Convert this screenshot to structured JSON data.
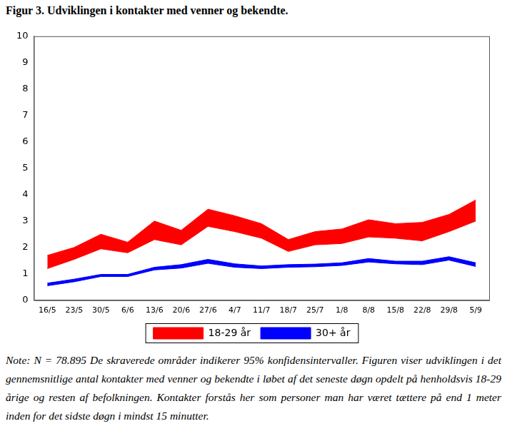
{
  "chart_data": {
    "type": "band",
    "title": "Figur 3. Udviklingen i kontakter med venner og bekendte.",
    "note": "Note: N = 78.895 De skraverede områder indikerer 95% konfidensintervaller. Figuren viser udviklingen i det gennemsnitlige antal kontakter med venner og bekendte i løbet af det seneste døgn opdelt på henholdsvis 18-29 årige og resten af befolkningen. Kontakter forstås her som personer man har været tættere på end 1 meter inden for det sidste døgn i mindst 15 minutter.",
    "categories": [
      "16/5",
      "23/5",
      "30/5",
      "6/6",
      "13/6",
      "20/6",
      "27/6",
      "4/7",
      "11/7",
      "18/7",
      "25/7",
      "1/8",
      "8/8",
      "15/8",
      "22/8",
      "29/8",
      "5/9"
    ],
    "series": [
      {
        "name": "18-29 år",
        "color": "#ff0000",
        "lower": [
          1.2,
          1.55,
          1.95,
          1.8,
          2.3,
          2.1,
          2.8,
          2.6,
          2.35,
          1.85,
          2.1,
          2.15,
          2.4,
          2.35,
          2.25,
          2.6,
          3.0
        ],
        "upper": [
          1.7,
          2.0,
          2.5,
          2.2,
          3.0,
          2.65,
          3.45,
          3.2,
          2.9,
          2.3,
          2.6,
          2.7,
          3.05,
          2.9,
          2.95,
          3.25,
          3.8
        ]
      },
      {
        "name": "30+ år",
        "color": "#0000ff",
        "lower": [
          0.55,
          0.7,
          0.9,
          0.9,
          1.15,
          1.22,
          1.4,
          1.25,
          1.2,
          1.25,
          1.27,
          1.32,
          1.45,
          1.38,
          1.35,
          1.52,
          1.28
        ],
        "upper": [
          0.65,
          0.8,
          0.98,
          0.98,
          1.25,
          1.35,
          1.55,
          1.38,
          1.3,
          1.35,
          1.37,
          1.42,
          1.58,
          1.48,
          1.48,
          1.65,
          1.42
        ]
      }
    ],
    "ylim": [
      0,
      10
    ],
    "yticks": [
      0,
      1,
      2,
      3,
      4,
      5,
      6,
      7,
      8,
      9,
      10
    ],
    "grid": false,
    "legend": "bottom"
  }
}
